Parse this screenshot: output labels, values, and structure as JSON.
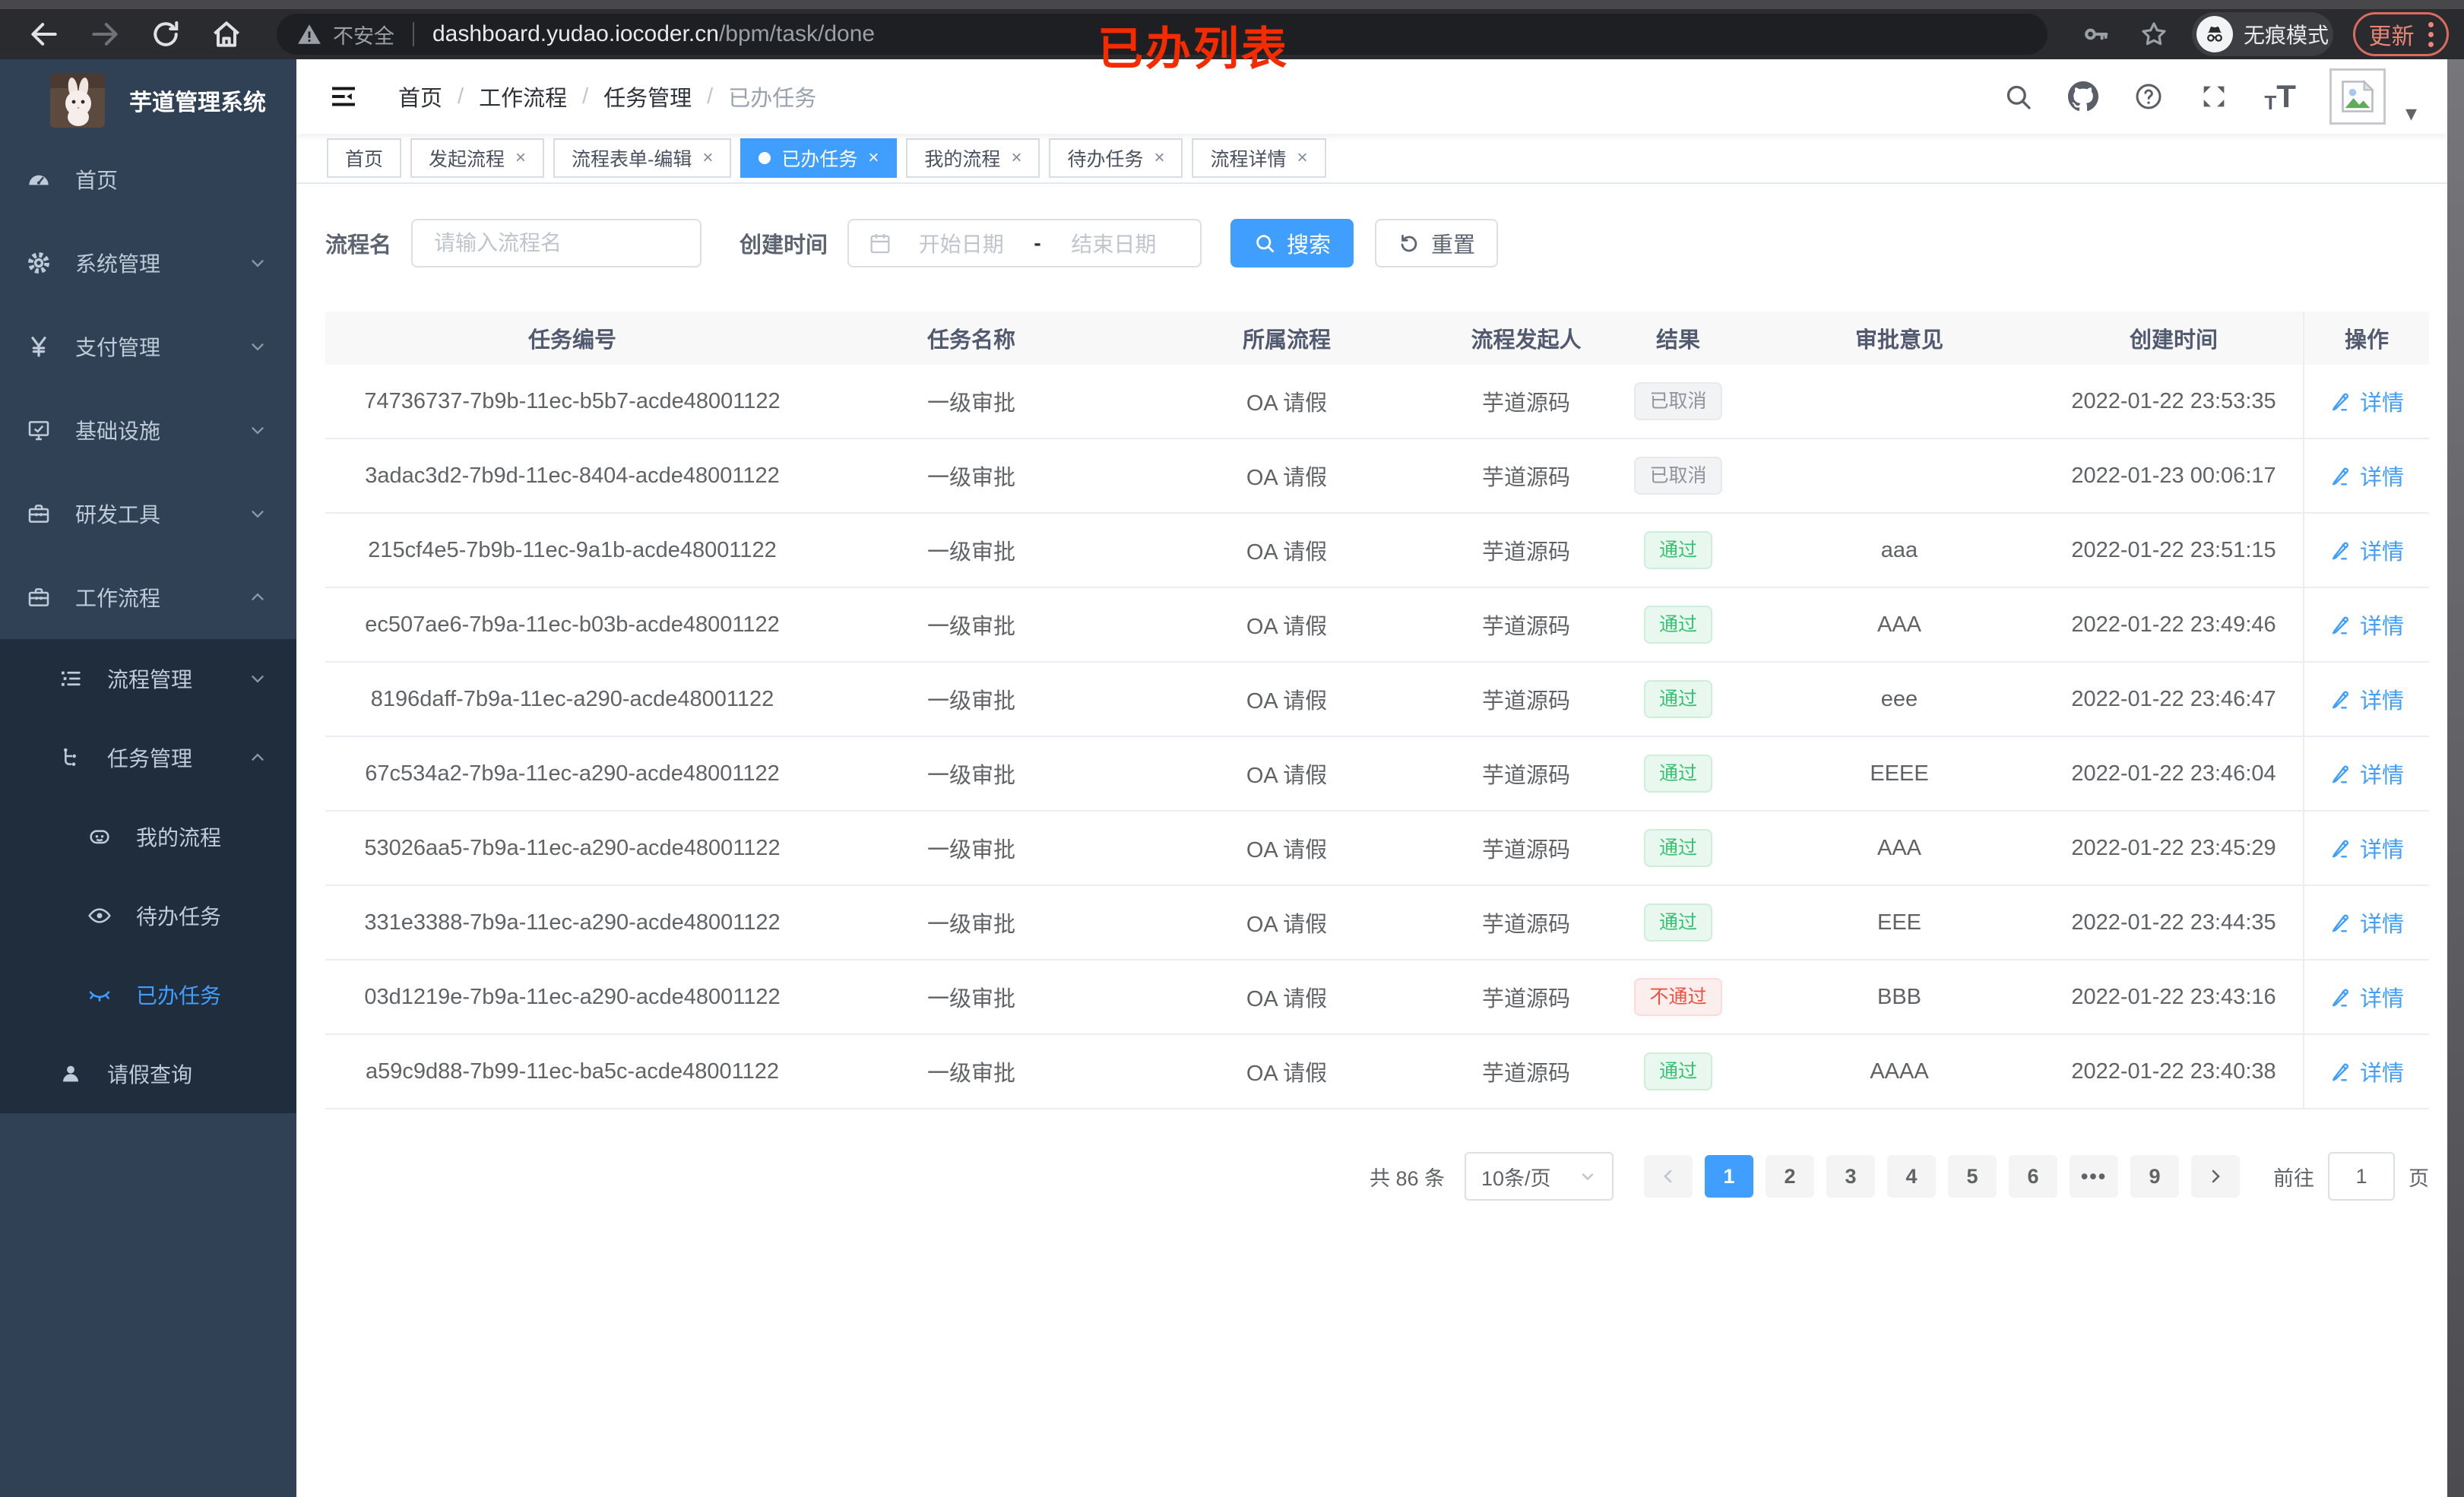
{
  "browser": {
    "security_label": "不安全",
    "url_host": "dashboard.yudao.iocoder.cn",
    "url_path": "/bpm/task/done",
    "incognito_label": "无痕模式",
    "update_label": "更新",
    "annotation": "已办列表"
  },
  "sidebar": {
    "app_title": "芋道管理系统",
    "items": [
      {
        "label": "首页",
        "icon": "dashboard-icon",
        "level": 1
      },
      {
        "label": "系统管理",
        "icon": "gear-icon",
        "level": 1,
        "chevron": "down"
      },
      {
        "label": "支付管理",
        "icon": "yen-icon",
        "level": 1,
        "chevron": "down"
      },
      {
        "label": "基础设施",
        "icon": "monitor-icon",
        "level": 1,
        "chevron": "down"
      },
      {
        "label": "研发工具",
        "icon": "toolbox-icon",
        "level": 1,
        "chevron": "down"
      },
      {
        "label": "工作流程",
        "icon": "briefcase-icon",
        "level": 1,
        "chevron": "up"
      },
      {
        "label": "流程管理",
        "icon": "list-icon",
        "level": 2,
        "chevron": "down"
      },
      {
        "label": "任务管理",
        "icon": "tree-icon",
        "level": 2,
        "chevron": "up"
      },
      {
        "label": "我的流程",
        "icon": "robot-icon",
        "level": 3
      },
      {
        "label": "待办任务",
        "icon": "eye-icon",
        "level": 3
      },
      {
        "label": "已办任务",
        "icon": "eye-closed-icon",
        "level": 3,
        "active": true
      },
      {
        "label": "请假查询",
        "icon": "user-icon",
        "level": 2
      }
    ]
  },
  "header": {
    "breadcrumb": [
      "首页",
      "工作流程",
      "任务管理",
      "已办任务"
    ],
    "breadcrumb_separator": "/"
  },
  "tabs": [
    {
      "label": "首页",
      "closable": false,
      "active": false
    },
    {
      "label": "发起流程",
      "closable": true,
      "active": false
    },
    {
      "label": "流程表单-编辑",
      "closable": true,
      "active": false
    },
    {
      "label": "已办任务",
      "closable": true,
      "active": true
    },
    {
      "label": "我的流程",
      "closable": true,
      "active": false
    },
    {
      "label": "待办任务",
      "closable": true,
      "active": false
    },
    {
      "label": "流程详情",
      "closable": true,
      "active": false
    }
  ],
  "filters": {
    "name_label": "流程名",
    "name_placeholder": "请输入流程名",
    "time_label": "创建时间",
    "start_placeholder": "开始日期",
    "range_separator": "-",
    "end_placeholder": "结束日期",
    "search_label": "搜索",
    "reset_label": "重置"
  },
  "table": {
    "columns": [
      "任务编号",
      "任务名称",
      "所属流程",
      "流程发起人",
      "结果",
      "审批意见",
      "创建时间",
      "操作"
    ],
    "detail_label": "详情",
    "rows": [
      {
        "id": "74736737-7b9b-11ec-b5b7-acde48001122",
        "name": "一级审批",
        "process": "OA 请假",
        "starter": "芋道源码",
        "result": "已取消",
        "result_type": "info",
        "opinion": "",
        "time": "2022-01-22 23:53:35"
      },
      {
        "id": "3adac3d2-7b9d-11ec-8404-acde48001122",
        "name": "一级审批",
        "process": "OA 请假",
        "starter": "芋道源码",
        "result": "已取消",
        "result_type": "info",
        "opinion": "",
        "time": "2022-01-23 00:06:17"
      },
      {
        "id": "215cf4e5-7b9b-11ec-9a1b-acde48001122",
        "name": "一级审批",
        "process": "OA 请假",
        "starter": "芋道源码",
        "result": "通过",
        "result_type": "success",
        "opinion": "aaa",
        "time": "2022-01-22 23:51:15"
      },
      {
        "id": "ec507ae6-7b9a-11ec-b03b-acde48001122",
        "name": "一级审批",
        "process": "OA 请假",
        "starter": "芋道源码",
        "result": "通过",
        "result_type": "success",
        "opinion": "AAA",
        "time": "2022-01-22 23:49:46"
      },
      {
        "id": "8196daff-7b9a-11ec-a290-acde48001122",
        "name": "一级审批",
        "process": "OA 请假",
        "starter": "芋道源码",
        "result": "通过",
        "result_type": "success",
        "opinion": "eee",
        "time": "2022-01-22 23:46:47"
      },
      {
        "id": "67c534a2-7b9a-11ec-a290-acde48001122",
        "name": "一级审批",
        "process": "OA 请假",
        "starter": "芋道源码",
        "result": "通过",
        "result_type": "success",
        "opinion": "EEEE",
        "time": "2022-01-22 23:46:04"
      },
      {
        "id": "53026aa5-7b9a-11ec-a290-acde48001122",
        "name": "一级审批",
        "process": "OA 请假",
        "starter": "芋道源码",
        "result": "通过",
        "result_type": "success",
        "opinion": "AAA",
        "time": "2022-01-22 23:45:29"
      },
      {
        "id": "331e3388-7b9a-11ec-a290-acde48001122",
        "name": "一级审批",
        "process": "OA 请假",
        "starter": "芋道源码",
        "result": "通过",
        "result_type": "success",
        "opinion": "EEE",
        "time": "2022-01-22 23:44:35"
      },
      {
        "id": "03d1219e-7b9a-11ec-a290-acde48001122",
        "name": "一级审批",
        "process": "OA 请假",
        "starter": "芋道源码",
        "result": "不通过",
        "result_type": "danger",
        "opinion": "BBB",
        "time": "2022-01-22 23:43:16"
      },
      {
        "id": "a59c9d88-7b99-11ec-ba5c-acde48001122",
        "name": "一级审批",
        "process": "OA 请假",
        "starter": "芋道源码",
        "result": "通过",
        "result_type": "success",
        "opinion": "AAAA",
        "time": "2022-01-22 23:40:38"
      }
    ]
  },
  "pagination": {
    "total_label": "共 86 条",
    "page_size": "10条/页",
    "pages": [
      {
        "label": "1",
        "active": true
      },
      {
        "label": "2",
        "active": false
      },
      {
        "label": "3",
        "active": false
      },
      {
        "label": "4",
        "active": false
      },
      {
        "label": "5",
        "active": false
      },
      {
        "label": "6",
        "active": false
      },
      {
        "label": "•••",
        "active": false,
        "ellipsis": true
      },
      {
        "label": "9",
        "active": false
      }
    ],
    "goto_label": "前往",
    "goto_value": "1",
    "page_label": "页"
  },
  "colors": {
    "accent": "#409eff",
    "sidebar_bg": "#304156",
    "submenu_bg": "#1f2d3d",
    "success_text": "#38c172",
    "danger_text": "#f2503f",
    "info_text": "#8f939b",
    "annotation_red": "#f52b00"
  }
}
